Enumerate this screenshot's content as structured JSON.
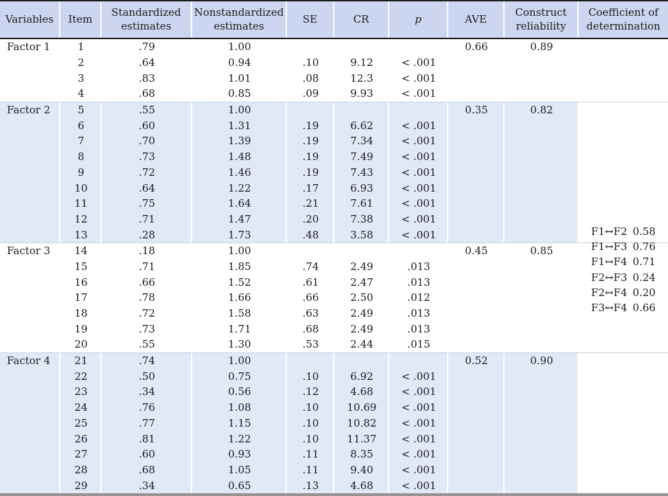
{
  "table": {
    "columns": [
      {
        "key": "variables",
        "label": "Variables"
      },
      {
        "key": "item",
        "label": "Item"
      },
      {
        "key": "std",
        "label": "Standardized estimates"
      },
      {
        "key": "nonstd",
        "label": "Nonstandardized estimates"
      },
      {
        "key": "se",
        "label": "SE"
      },
      {
        "key": "cr",
        "label": "CR"
      },
      {
        "key": "p",
        "label": "p"
      },
      {
        "key": "ave",
        "label": "AVE"
      },
      {
        "key": "crel",
        "label": "Construct reliability"
      },
      {
        "key": "coef",
        "label": "Coefficient of determination"
      }
    ],
    "sections": [
      {
        "variable": "Factor 1",
        "ave": "0.66",
        "construct_reliability": "0.89",
        "shaded": false,
        "rows": [
          {
            "item": "1",
            "std": ".79",
            "nonstd": "1.00",
            "se": "",
            "cr": "",
            "p": ""
          },
          {
            "item": "2",
            "std": ".64",
            "nonstd": "0.94",
            "se": ".10",
            "cr": "9.12",
            "p": "< .001"
          },
          {
            "item": "3",
            "std": ".83",
            "nonstd": "1.01",
            "se": ".08",
            "cr": "12.3",
            "p": "< .001"
          },
          {
            "item": "4",
            "std": ".68",
            "nonstd": "0.85",
            "se": ".09",
            "cr": "9.93",
            "p": "< .001"
          }
        ]
      },
      {
        "variable": "Factor 2",
        "ave": "0.35",
        "construct_reliability": "0.82",
        "shaded": true,
        "rows": [
          {
            "item": "5",
            "std": ".55",
            "nonstd": "1.00",
            "se": "",
            "cr": "",
            "p": ""
          },
          {
            "item": "6",
            "std": ".60",
            "nonstd": "1.31",
            "se": ".19",
            "cr": "6.62",
            "p": "< .001"
          },
          {
            "item": "7",
            "std": ".70",
            "nonstd": "1.39",
            "se": ".19",
            "cr": "7.34",
            "p": "< .001"
          },
          {
            "item": "8",
            "std": ".73",
            "nonstd": "1.48",
            "se": ".19",
            "cr": "7.49",
            "p": "< .001"
          },
          {
            "item": "9",
            "std": ".72",
            "nonstd": "1.46",
            "se": ".19",
            "cr": "7.43",
            "p": "< .001"
          },
          {
            "item": "10",
            "std": ".64",
            "nonstd": "1.22",
            "se": ".17",
            "cr": "6.93",
            "p": "< .001"
          },
          {
            "item": "11",
            "std": ".75",
            "nonstd": "1.64",
            "se": ".21",
            "cr": "7.61",
            "p": "< .001"
          },
          {
            "item": "12",
            "std": ".71",
            "nonstd": "1.47",
            "se": ".20",
            "cr": "7.38",
            "p": "< .001"
          },
          {
            "item": "13",
            "std": ".28",
            "nonstd": "1.73",
            "se": ".48",
            "cr": "3.58",
            "p": "< .001"
          }
        ]
      },
      {
        "variable": "Factor 3",
        "ave": "0.45",
        "construct_reliability": "0.85",
        "shaded": false,
        "rows": [
          {
            "item": "14",
            "std": ".18",
            "nonstd": "1.00",
            "se": "",
            "cr": "",
            "p": ""
          },
          {
            "item": "15",
            "std": ".71",
            "nonstd": "1.85",
            "se": ".74",
            "cr": "2.49",
            "p": ".013"
          },
          {
            "item": "16",
            "std": ".66",
            "nonstd": "1.52",
            "se": ".61",
            "cr": "2.47",
            "p": ".013"
          },
          {
            "item": "17",
            "std": ".78",
            "nonstd": "1.66",
            "se": ".66",
            "cr": "2.50",
            "p": ".012"
          },
          {
            "item": "18",
            "std": ".72",
            "nonstd": "1.58",
            "se": ".63",
            "cr": "2.49",
            "p": ".013"
          },
          {
            "item": "19",
            "std": ".73",
            "nonstd": "1.71",
            "se": ".68",
            "cr": "2.49",
            "p": ".013"
          },
          {
            "item": "20",
            "std": ".55",
            "nonstd": "1.30",
            "se": ".53",
            "cr": "2.44",
            "p": ".015"
          }
        ]
      },
      {
        "variable": "Factor 4",
        "ave": "0.52",
        "construct_reliability": "0.90",
        "shaded": true,
        "rows": [
          {
            "item": "21",
            "std": ".74",
            "nonstd": "1.00",
            "se": "",
            "cr": "",
            "p": ""
          },
          {
            "item": "22",
            "std": ".50",
            "nonstd": "0.75",
            "se": ".10",
            "cr": "6.92",
            "p": "< .001"
          },
          {
            "item": "23",
            "std": ".34",
            "nonstd": "0.56",
            "se": ".12",
            "cr": "4.68",
            "p": "< .001"
          },
          {
            "item": "24",
            "std": ".76",
            "nonstd": "1.08",
            "se": ".10",
            "cr": "10.69",
            "p": "< .001"
          },
          {
            "item": "25",
            "std": ".77",
            "nonstd": "1.15",
            "se": ".10",
            "cr": "10.82",
            "p": "< .001"
          },
          {
            "item": "26",
            "std": ".81",
            "nonstd": "1.22",
            "se": ".10",
            "cr": "11.37",
            "p": "< .001"
          },
          {
            "item": "27",
            "std": ".60",
            "nonstd": "0.93",
            "se": ".11",
            "cr": "8.35",
            "p": "< .001"
          },
          {
            "item": "28",
            "std": ".68",
            "nonstd": "1.05",
            "se": ".11",
            "cr": "9.40",
            "p": "< .001"
          },
          {
            "item": "29",
            "std": ".34",
            "nonstd": "0.65",
            "se": ".13",
            "cr": "4.68",
            "p": "< .001"
          }
        ]
      }
    ],
    "determination_coefficients": [
      {
        "pair": "F1↔F2",
        "value": "0.58"
      },
      {
        "pair": "F1↔F3",
        "value": "0.76"
      },
      {
        "pair": "F1↔F4",
        "value": "0.71"
      },
      {
        "pair": "F2↔F3",
        "value": "0.24"
      },
      {
        "pair": "F2↔F4",
        "value": "0.20"
      },
      {
        "pair": "F3↔F4",
        "value": "0.66"
      }
    ],
    "colors": {
      "header_bg": "#ccd6f0",
      "shaded_bg": "#e1e8f8",
      "top_rule": "#1b1b1b",
      "header_rule": "#1b1b1b",
      "bottom_rule": "#949494",
      "section_rule": "#ccd1db",
      "text": "#1a1a1a"
    }
  }
}
